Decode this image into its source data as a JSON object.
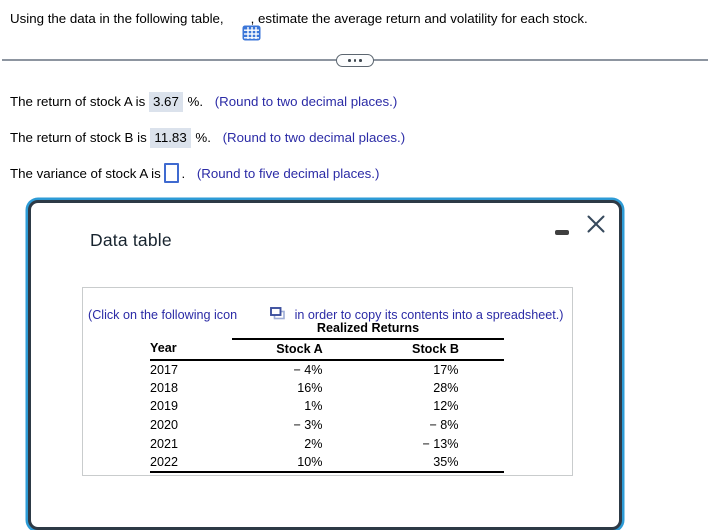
{
  "question": {
    "before_icon": "Using the data in the following table,",
    "after_icon": ", estimate the average return and volatility for each stock."
  },
  "statements": [
    {
      "prefix": "The return of stock A is ",
      "value": "3.67",
      "suffix": " %. ",
      "hint": "(Round to two decimal places.)"
    },
    {
      "prefix": "The return of stock B is ",
      "value": "11.83",
      "suffix": " %. ",
      "hint": "(Round to two decimal places.)"
    },
    {
      "prefix": "The variance of stock A is ",
      "value": "",
      "suffix": ". ",
      "hint": "(Round to five decimal places.)"
    }
  ],
  "dialog": {
    "title": "Data table",
    "copy_instruction": {
      "before": "(Click on the following icon",
      "after": " in order to copy its contents into a spreadsheet.)"
    },
    "table": {
      "group_header": "Realized Returns",
      "columns": [
        "Year",
        "Stock A",
        "Stock B"
      ],
      "rows": [
        {
          "year": "2017",
          "stock_a": "− 4%",
          "stock_b": "17%"
        },
        {
          "year": "2018",
          "stock_a": "16%",
          "stock_b": "28%"
        },
        {
          "year": "2019",
          "stock_a": "1%",
          "stock_b": "12%"
        },
        {
          "year": "2020",
          "stock_a": "− 3%",
          "stock_b": "− 8%"
        },
        {
          "year": "2021",
          "stock_a": "2%",
          "stock_b": "− 13%"
        },
        {
          "year": "2022",
          "stock_a": "10%",
          "stock_b": "35%"
        }
      ]
    }
  },
  "icons": {
    "table_grid": "spreadsheet-grid",
    "copy": "overlapping-squares",
    "minimize": "minus-dash",
    "close": "x-cross",
    "ellipsis": "three-dots"
  },
  "colors": {
    "link_blue": "#2b2ba6",
    "highlight_bg": "#dbe2ec",
    "input_border_blue": "#3f6ad0",
    "dialog_border_navy": "#2d3a46",
    "dialog_focus_blue": "#2d9bd6",
    "table_icon_blue": "#3b76d8",
    "divider_gray": "#8d95a0"
  }
}
